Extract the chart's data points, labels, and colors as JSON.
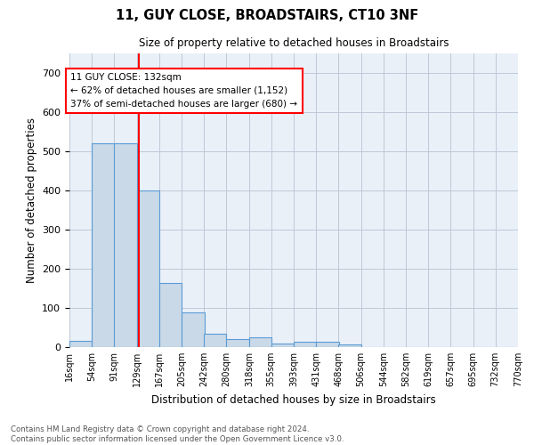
{
  "title": "11, GUY CLOSE, BROADSTAIRS, CT10 3NF",
  "subtitle": "Size of property relative to detached houses in Broadstairs",
  "xlabel": "Distribution of detached houses by size in Broadstairs",
  "ylabel": "Number of detached properties",
  "bin_labels": [
    "16sqm",
    "54sqm",
    "91sqm",
    "129sqm",
    "167sqm",
    "205sqm",
    "242sqm",
    "280sqm",
    "318sqm",
    "355sqm",
    "393sqm",
    "431sqm",
    "468sqm",
    "506sqm",
    "544sqm",
    "582sqm",
    "619sqm",
    "657sqm",
    "695sqm",
    "732sqm",
    "770sqm"
  ],
  "bin_edges": [
    16,
    54,
    91,
    129,
    167,
    205,
    242,
    280,
    318,
    355,
    393,
    431,
    468,
    506,
    544,
    582,
    619,
    657,
    695,
    732,
    770
  ],
  "bar_heights": [
    15,
    520,
    520,
    400,
    163,
    88,
    34,
    21,
    24,
    9,
    13,
    13,
    6,
    0,
    0,
    0,
    0,
    0,
    0,
    0
  ],
  "bar_color": "#c9d9e8",
  "bar_edge_color": "#5b9bd5",
  "red_line_x": 132,
  "annotation_text": "11 GUY CLOSE: 132sqm\n← 62% of detached houses are smaller (1,152)\n37% of semi-detached houses are larger (680) →",
  "ylim": [
    0,
    750
  ],
  "yticks": [
    0,
    100,
    200,
    300,
    400,
    500,
    600,
    700
  ],
  "grid_color": "#c0c8d8",
  "background_color": "#eaf0f8",
  "footer_line1": "Contains HM Land Registry data © Crown copyright and database right 2024.",
  "footer_line2": "Contains public sector information licensed under the Open Government Licence v3.0."
}
